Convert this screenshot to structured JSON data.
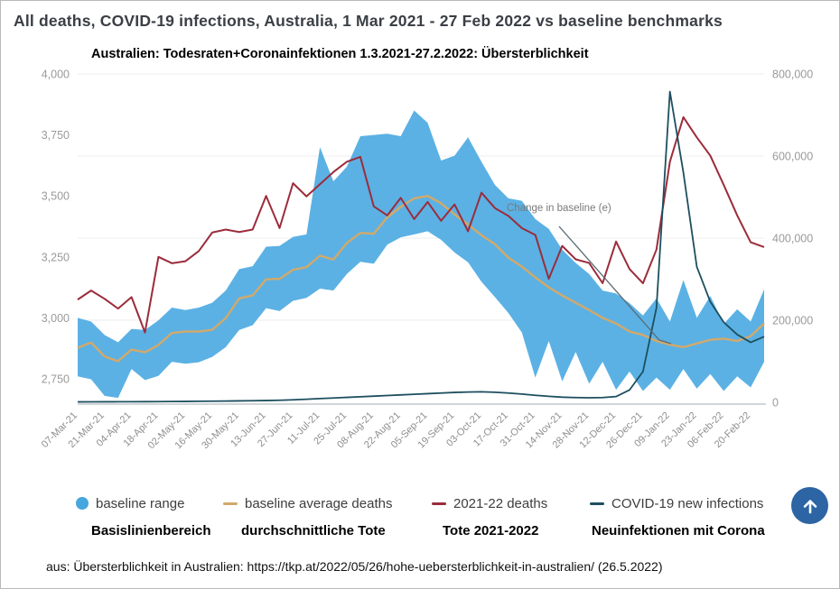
{
  "header": {
    "title": "All deaths, COVID-19 infections, Australia, 1 Mar 2021 - 27 Feb 2022 vs baseline benchmarks",
    "subtitle": "Australien: Todesraten+Coronainfektionen 1.3.2021-27.2.2022: Übersterblichkeit"
  },
  "chart_data": {
    "type": "line",
    "title": "All deaths, COVID-19 infections, Australia, 1 Mar 2021 - 27 Feb 2022 vs baseline benchmarks",
    "x_tick_labels": [
      "07-Mar-21",
      "21-Mar-21",
      "04-Apr-21",
      "18-Apr-21",
      "02-May-21",
      "16-May-21",
      "30-May-21",
      "13-Jun-21",
      "27-Jun-21",
      "11-Jul-21",
      "25-Jul-21",
      "08-Aug-21",
      "22-Aug-21",
      "05-Sep-21",
      "19-Sep-21",
      "03-Oct-21",
      "17-Oct-21",
      "31-Oct-21",
      "14-Nov-21",
      "28-Nov-21",
      "12-Dec-21",
      "26-Dec-21",
      "09-Jan-22",
      "23-Jan-22",
      "06-Feb-22",
      "20-Feb-22"
    ],
    "weeks_per_tick": 2,
    "points_count": 52,
    "left_axis": {
      "ticks": [
        "4,000",
        "3,750",
        "3,500",
        "3,250",
        "3,000",
        "2,750"
      ],
      "tick_values": [
        4000,
        3750,
        3500,
        3250,
        3000,
        2750
      ],
      "max": 4000,
      "grid": "faint"
    },
    "right_axis": {
      "ticks": [
        "800,000",
        "600,000",
        "400,000",
        "200,000",
        "0"
      ],
      "tick_values": [
        800000,
        600000,
        400000,
        200000,
        0
      ],
      "max": 800000,
      "min": 0
    },
    "series": [
      {
        "name": "baseline range",
        "type": "band",
        "axis": "left",
        "color": "#5bb1e4",
        "hi": [
          3000,
          2985,
          2930,
          2900,
          2955,
          2950,
          2990,
          3042,
          3032,
          3042,
          3062,
          3112,
          3200,
          3212,
          3292,
          3295,
          3332,
          3342,
          3700,
          3560,
          3620,
          3745,
          3750,
          3755,
          3745,
          3850,
          3800,
          3645,
          3665,
          3740,
          3640,
          3545,
          3490,
          3480,
          3405,
          3365,
          3280,
          3225,
          3180,
          3112,
          3100,
          3060,
          3010,
          3080,
          2985,
          3155,
          3000,
          3090,
          2975,
          3035,
          2985,
          3117
        ],
        "lo": [
          2760,
          2748,
          2680,
          2672,
          2790,
          2745,
          2762,
          2820,
          2812,
          2818,
          2840,
          2880,
          2950,
          2970,
          3040,
          3028,
          3070,
          3082,
          3120,
          3112,
          3180,
          3230,
          3222,
          3300,
          3330,
          3342,
          3355,
          3320,
          3268,
          3228,
          3148,
          3085,
          3020,
          2940,
          2755,
          2905,
          2740,
          2860,
          2730,
          2820,
          2705,
          2780,
          2700,
          2755,
          2705,
          2790,
          2710,
          2770,
          2700,
          2760,
          2715,
          2820
        ]
      },
      {
        "name": "baseline average deaths",
        "type": "line",
        "axis": "left",
        "color": "#d2a96a",
        "values": [
          2877,
          2899,
          2842,
          2822,
          2870,
          2859,
          2889,
          2938,
          2944,
          2944,
          2951,
          2999,
          3080,
          3092,
          3158,
          3160,
          3197,
          3208,
          3255,
          3239,
          3307,
          3348,
          3345,
          3412,
          3455,
          3490,
          3500,
          3470,
          3424,
          3383,
          3339,
          3302,
          3247,
          3210,
          3166,
          3125,
          3092,
          3062,
          3032,
          3000,
          2977,
          2944,
          2930,
          2905,
          2890,
          2880,
          2895,
          2910,
          2915,
          2905,
          2925,
          2977
        ]
      },
      {
        "name": "2021-22 deaths",
        "type": "line",
        "axis": "left",
        "color": "#9b2c3b",
        "values": [
          3075,
          3112,
          3078,
          3038,
          3085,
          2940,
          3250,
          3224,
          3232,
          3274,
          3350,
          3362,
          3352,
          3362,
          3500,
          3368,
          3552,
          3498,
          3548,
          3598,
          3640,
          3660,
          3457,
          3420,
          3492,
          3405,
          3475,
          3398,
          3465,
          3355,
          3513,
          3450,
          3418,
          3368,
          3340,
          3160,
          3295,
          3240,
          3225,
          3142,
          3313,
          3200,
          3142,
          3280,
          3640,
          3823,
          3740,
          3665,
          3545,
          3420,
          3310,
          3290
        ]
      },
      {
        "name": "COVID-19 new infections",
        "type": "line",
        "axis": "right",
        "color": "#1d4f5f",
        "values": [
          1000,
          1100,
          1200,
          1300,
          1400,
          1500,
          1700,
          1900,
          2100,
          2400,
          2700,
          3000,
          3400,
          3800,
          4300,
          5000,
          6000,
          7500,
          9000,
          10500,
          12000,
          13500,
          15000,
          16500,
          18000,
          19500,
          21000,
          22500,
          24000,
          25000,
          25500,
          24500,
          22500,
          20000,
          17000,
          14500,
          12500,
          11500,
          11000,
          11500,
          14000,
          30000,
          75000,
          230000,
          757000,
          560000,
          330000,
          245000,
          195000,
          165000,
          146000,
          160000
        ]
      }
    ],
    "annotation": {
      "text": "Change in baseline (e)",
      "leader_color": "#5a6b75"
    }
  },
  "legend": {
    "items": [
      {
        "label": "baseline range",
        "label_de": "Basislinienbereich",
        "color": "#45a7dd",
        "marker": "circle"
      },
      {
        "label": "baseline average deaths",
        "label_de": "durchschnittliche Tote",
        "color": "#d2a96a",
        "marker": "dash"
      },
      {
        "label": "2021-22 deaths",
        "label_de": "Tote 2021-2022",
        "color": "#9b2c3b",
        "marker": "dash"
      },
      {
        "label": "COVID-19 new infections",
        "label_de": "Neuinfektionen mit Corona",
        "color": "#1d4f5f",
        "marker": "dash"
      }
    ]
  },
  "footer": {
    "source": "aus: Übersterblichkeit in Australien: https://tkp.at/2022/05/26/hohe-uebersterblichkeit-in-australien/ (26.5.2022)"
  },
  "scroll_top_button": {
    "name": "scroll to top",
    "color": "#2c64a4",
    "arrow": "up"
  }
}
